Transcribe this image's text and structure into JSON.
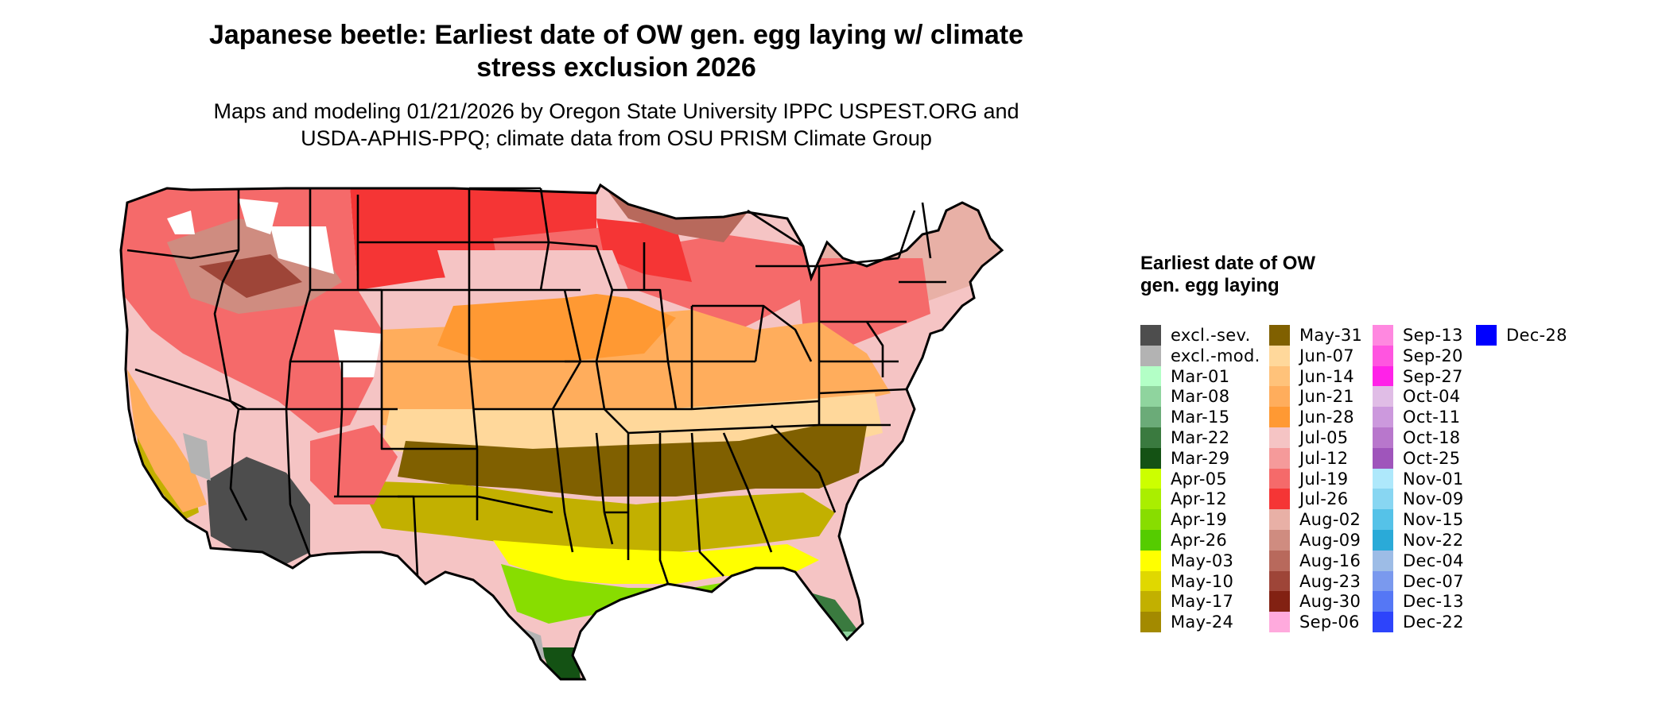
{
  "title": "Japanese beetle: Earliest date of OW gen. egg laying w/ climate stress exclusion 2026",
  "subtitle": "Maps and modeling 01/21/2026 by Oregon State University IPPC USPEST.ORG and USDA-APHIS-PPQ; climate data from OSU PRISM Climate Group",
  "legend": {
    "title": "Earliest date of OW gen. egg laying",
    "columns": [
      [
        {
          "label": "excl.-sev.",
          "color": "#4d4d4d"
        },
        {
          "label": "excl.-mod.",
          "color": "#b3b3b3"
        },
        {
          "label": "Mar-01",
          "color": "#b3ffc6"
        },
        {
          "label": "Mar-08",
          "color": "#8fd49e"
        },
        {
          "label": "Mar-15",
          "color": "#6bab78"
        },
        {
          "label": "Mar-22",
          "color": "#3a7a3f"
        },
        {
          "label": "Mar-29",
          "color": "#145214"
        },
        {
          "label": "Apr-05",
          "color": "#ccff00"
        },
        {
          "label": "Apr-12",
          "color": "#aaee00"
        },
        {
          "label": "Apr-19",
          "color": "#88dd00"
        },
        {
          "label": "Apr-26",
          "color": "#55cc00"
        },
        {
          "label": "May-03",
          "color": "#ffff00"
        },
        {
          "label": "May-10",
          "color": "#e0d800"
        },
        {
          "label": "May-17",
          "color": "#c2b000"
        },
        {
          "label": "May-24",
          "color": "#a38a00"
        }
      ],
      [
        {
          "label": "May-31",
          "color": "#806000"
        },
        {
          "label": "Jun-07",
          "color": "#ffd89b"
        },
        {
          "label": "Jun-14",
          "color": "#ffc27a"
        },
        {
          "label": "Jun-21",
          "color": "#ffad5c"
        },
        {
          "label": "Jun-28",
          "color": "#ff9933"
        },
        {
          "label": "Jul-05",
          "color": "#f5c4c4"
        },
        {
          "label": "Jul-12",
          "color": "#f59a9a"
        },
        {
          "label": "Jul-19",
          "color": "#f56a6a"
        },
        {
          "label": "Jul-26",
          "color": "#f53535"
        },
        {
          "label": "Aug-02",
          "color": "#e8b0a6"
        },
        {
          "label": "Aug-09",
          "color": "#cf8c80"
        },
        {
          "label": "Aug-16",
          "color": "#b8695c"
        },
        {
          "label": "Aug-23",
          "color": "#9e4538"
        },
        {
          "label": "Aug-30",
          "color": "#822112"
        },
        {
          "label": "Sep-06",
          "color": "#ffaadd"
        }
      ],
      [
        {
          "label": "Sep-13",
          "color": "#ff88e0"
        },
        {
          "label": "Sep-20",
          "color": "#ff55e0"
        },
        {
          "label": "Sep-27",
          "color": "#ff22e8"
        },
        {
          "label": "Oct-04",
          "color": "#e0bde6"
        },
        {
          "label": "Oct-11",
          "color": "#cc99dd"
        },
        {
          "label": "Oct-18",
          "color": "#b877cc"
        },
        {
          "label": "Oct-25",
          "color": "#9f55bb"
        },
        {
          "label": "Nov-01",
          "color": "#aee8fb"
        },
        {
          "label": "Nov-09",
          "color": "#88d6f2"
        },
        {
          "label": "Nov-15",
          "color": "#55c2e8"
        },
        {
          "label": "Nov-22",
          "color": "#2aaad8"
        },
        {
          "label": "Dec-04",
          "color": "#9dbce6"
        },
        {
          "label": "Dec-07",
          "color": "#7a99ee"
        },
        {
          "label": "Dec-13",
          "color": "#5577f5"
        },
        {
          "label": "Dec-22",
          "color": "#2d44fb"
        }
      ],
      [
        {
          "label": "Dec-28",
          "color": "#0000ff"
        }
      ]
    ]
  }
}
